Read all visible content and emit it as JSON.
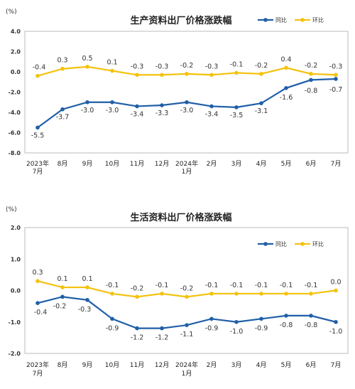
{
  "colors": {
    "yoy": "#1f5fa8",
    "mom": "#f4c20d",
    "axis": "#bbbbbb"
  },
  "chart_data": [
    {
      "type": "line",
      "title": "生产资料出厂价格涨跌幅",
      "unit": "(%)",
      "categories": [
        [
          "2023年",
          "7月"
        ],
        [
          "8月"
        ],
        [
          "9月"
        ],
        [
          "10月"
        ],
        [
          "11月"
        ],
        [
          "12月"
        ],
        [
          "2024年",
          "1月"
        ],
        [
          "2月"
        ],
        [
          "3月"
        ],
        [
          "4月"
        ],
        [
          "5月"
        ],
        [
          "6月"
        ],
        [
          "7月"
        ]
      ],
      "ylim": [
        -8,
        4
      ],
      "yticks": [
        "4.0",
        "2.0",
        "0.0",
        "-2.0",
        "-4.0",
        "-6.0",
        "-8.0"
      ],
      "legend_position": "top-right",
      "series": [
        {
          "name": "同比",
          "values": [
            -5.5,
            -3.7,
            -3.0,
            -3.0,
            -3.4,
            -3.3,
            -3.0,
            -3.4,
            -3.5,
            -3.1,
            -1.6,
            -0.8,
            -0.7
          ],
          "labels": [
            "-5.5",
            "-3.7",
            "-3.0",
            "-3.0",
            "-3.4",
            "-3.3",
            "-3.0",
            "-3.4",
            "-3.5",
            "-3.1",
            "-1.6",
            "-0.8",
            "-0.7"
          ]
        },
        {
          "name": "环比",
          "values": [
            -0.4,
            0.3,
            0.5,
            0.1,
            -0.3,
            -0.3,
            -0.2,
            -0.3,
            -0.1,
            -0.2,
            0.4,
            -0.2,
            -0.3
          ],
          "labels": [
            "-0.4",
            "0.3",
            "0.5",
            "0.1",
            "-0.3",
            "-0.3",
            "-0.2",
            "-0.3",
            "-0.1",
            "-0.2",
            "0.4",
            "-0.2",
            "-0.3"
          ]
        }
      ]
    },
    {
      "type": "line",
      "title": "生活资料出厂价格涨跌幅",
      "unit": "(%)",
      "categories": [
        [
          "2023年",
          "7月"
        ],
        [
          "8月"
        ],
        [
          "9月"
        ],
        [
          "10月"
        ],
        [
          "11月"
        ],
        [
          "12月"
        ],
        [
          "2024年",
          "1月"
        ],
        [
          "2月"
        ],
        [
          "3月"
        ],
        [
          "4月"
        ],
        [
          "5月"
        ],
        [
          "6月"
        ],
        [
          "7月"
        ]
      ],
      "ylim": [
        -2,
        2
      ],
      "yticks": [
        "2.0",
        "1.0",
        "0.0",
        "-1.0",
        "-2.0"
      ],
      "legend_position": "top-right",
      "series": [
        {
          "name": "同比",
          "values": [
            -0.4,
            -0.2,
            -0.3,
            -0.9,
            -1.2,
            -1.2,
            -1.1,
            -0.9,
            -1.0,
            -0.9,
            -0.8,
            -0.8,
            -1.0
          ],
          "labels": [
            "-0.4",
            "-0.2",
            "-0.3",
            "-0.9",
            "-1.2",
            "-1.2",
            "-1.1",
            "-0.9",
            "-1.0",
            "-0.9",
            "-0.8",
            "-0.8",
            "-1.0"
          ]
        },
        {
          "name": "环比",
          "values": [
            0.3,
            0.1,
            0.1,
            -0.1,
            -0.2,
            -0.1,
            -0.2,
            -0.1,
            -0.1,
            -0.1,
            -0.1,
            -0.1,
            0.0
          ],
          "labels": [
            "0.3",
            "0.1",
            "0.1",
            "-0.1",
            "-0.2",
            "-0.1",
            "-0.2",
            "-0.1",
            "-0.1",
            "-0.1",
            "-0.1",
            "-0.1",
            "0.0"
          ]
        }
      ]
    }
  ]
}
